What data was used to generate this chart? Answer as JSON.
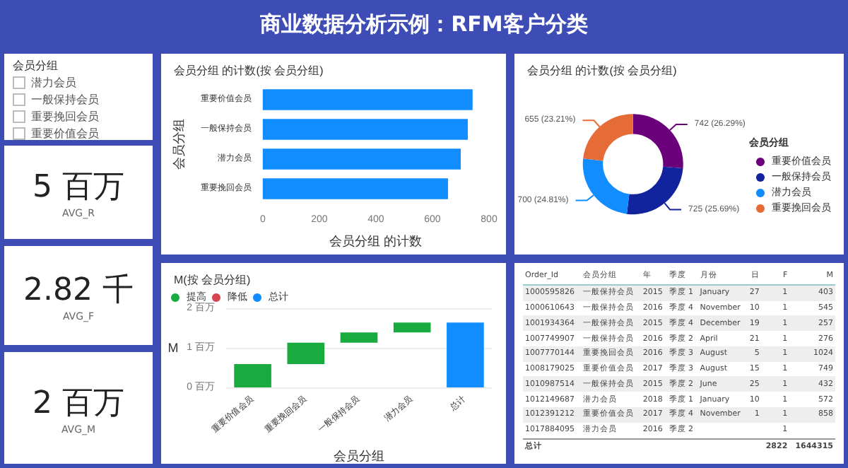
{
  "chart_data": [
    {
      "type": "other",
      "title": "商业数据分析示例：RFM客户分类"
    },
    {
      "type": "other",
      "title": "会员分组",
      "categories": [
        "潜力会员",
        "一般保持会员",
        "重要挽回会员",
        "重要价值会员"
      ]
    },
    {
      "type": "other",
      "annotations": [
        "5 百万",
        "AVG_R"
      ]
    },
    {
      "type": "other",
      "annotations": [
        "2.82 千",
        "AVG_F"
      ]
    },
    {
      "type": "other",
      "annotations": [
        "2 百万",
        "AVG_M"
      ]
    },
    {
      "type": "bar",
      "orientation": "horizontal",
      "title": "会员分组 的计数(按 会员分组)",
      "xlabel": "会员分组 的计数",
      "ylabel": "会员分组",
      "categories": [
        "重要价值会员",
        "一般保持会员",
        "潜力会员",
        "重要挽回会员"
      ],
      "values": [
        742,
        725,
        700,
        655
      ],
      "color": "#118dff",
      "xlim": [
        0,
        800
      ],
      "xticks": [
        0,
        200,
        400,
        600,
        800
      ]
    },
    {
      "type": "donut",
      "title": "会员分组 的计数(按 会员分组)",
      "legend_title": "会员分组",
      "legend": "right",
      "categories": [
        "重要价值会员",
        "一般保持会员",
        "潜力会员",
        "重要挽回会员"
      ],
      "values": [
        742,
        725,
        700,
        655
      ],
      "colors": [
        "#6b007b",
        "#12239e",
        "#118dff",
        "#e66c37"
      ],
      "value_labels": [
        "742 (26.29%)",
        "725 (25.69%)",
        "700 (24.81%)",
        "655 (23.21%)"
      ]
    },
    {
      "type": "bar",
      "title": "M(按 会员分组)",
      "xlabel": "会员分组",
      "ylabel": "M",
      "legend": "top left",
      "grid": "y",
      "categories": [
        "重要价值会员",
        "重要挽回会员",
        "一般保持会员",
        "潜力会员",
        "总计"
      ],
      "series": [
        {
          "name": "提高",
          "color": "#1aab40",
          "values": [
            0.59,
            0.54,
            0.26,
            0.25,
            null
          ],
          "base": [
            0,
            0.59,
            1.13,
            1.39,
            null
          ]
        },
        {
          "name": "降低",
          "color": "#d64550",
          "values": [
            null,
            null,
            null,
            null,
            null
          ]
        },
        {
          "name": "总计",
          "color": "#118dff",
          "values": [
            null,
            null,
            null,
            null,
            1.64
          ],
          "base": [
            null,
            null,
            null,
            null,
            0
          ]
        }
      ],
      "ylim": [
        0,
        2
      ],
      "yticks": [
        {
          "value": 0,
          "label": "0 百万"
        },
        {
          "value": 1,
          "label": "1 百万"
        },
        {
          "value": 2,
          "label": "2 百万"
        }
      ]
    },
    {
      "type": "other",
      "categories": [
        "Order_Id",
        "会员分组",
        "年",
        "季度",
        "月份",
        "日",
        "F",
        "M"
      ],
      "cell_labels": [
        [
          "1000595826",
          "一般保持会员",
          "2015",
          "季度 1",
          "January",
          "27",
          "1",
          "403"
        ],
        [
          "1000610643",
          "一般保持会员",
          "2016",
          "季度 4",
          "November",
          "10",
          "1",
          "545"
        ],
        [
          "1001934364",
          "一般保持会员",
          "2015",
          "季度 4",
          "December",
          "19",
          "1",
          "257"
        ],
        [
          "1007749907",
          "一般保持会员",
          "2016",
          "季度 2",
          "April",
          "21",
          "1",
          "276"
        ],
        [
          "1007770144",
          "重要挽回会员",
          "2016",
          "季度 3",
          "August",
          "5",
          "1",
          "1024"
        ],
        [
          "1008179025",
          "重要价值会员",
          "2017",
          "季度 3",
          "August",
          "15",
          "1",
          "749"
        ],
        [
          "1010987514",
          "一般保持会员",
          "2015",
          "季度 2",
          "June",
          "25",
          "1",
          "432"
        ],
        [
          "1012149687",
          "潜力会员",
          "2018",
          "季度 1",
          "January",
          "10",
          "1",
          "572"
        ],
        [
          "1012391212",
          "重要价值会员",
          "2017",
          "季度 4",
          "November",
          "1",
          "1",
          "858"
        ],
        [
          "1017884095",
          "潜力会员",
          "2016",
          "季度 2",
          null,
          null,
          "1",
          null
        ]
      ],
      "annotations": [
        "总计",
        "2822",
        "1644315"
      ]
    }
  ]
}
